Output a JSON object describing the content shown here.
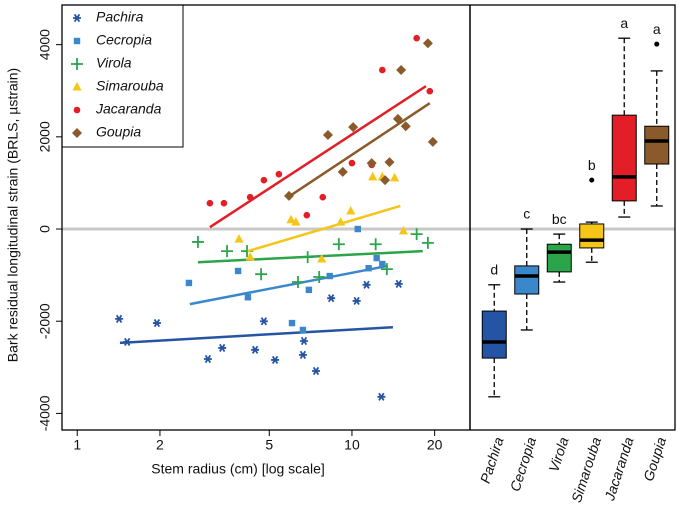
{
  "chart_data": [
    {
      "type": "scatter",
      "x_label": "Stem radius (cm) [log scale]",
      "y_label": "Bark residual longitudinal strain (BRLS, µstrain)",
      "log_x": true,
      "xlim": [
        0.88,
        26.9
      ],
      "ylim": [
        -4360,
        4860
      ],
      "xticks": [
        1,
        2,
        5,
        10,
        20
      ],
      "yticks": [
        -4000,
        -2000,
        0,
        2000,
        4000
      ],
      "ref_line": 0,
      "legend": "upper left",
      "series": [
        {
          "name": "Pachira",
          "color": "#2554a4",
          "marker": "asterisk",
          "x": [
            1.42,
            1.52,
            1.95,
            2.99,
            3.37,
            4.44,
            4.78,
            5.25,
            6.63,
            6.69,
            7.4,
            8.4,
            10.4,
            11.3,
            12.8,
            14.8
          ],
          "values": [
            -1950,
            -2450,
            -2040,
            -2820,
            -2580,
            -2620,
            -2000,
            -2840,
            -2730,
            -2430,
            -3080,
            -1500,
            -1560,
            -1210,
            -3640,
            -1190
          ],
          "fit": {
            "x": [
              1.43,
              14.1
            ],
            "values": [
              -2470,
              -2130
            ]
          }
        },
        {
          "name": "Cecropia",
          "color": "#3b87cb",
          "marker": "square",
          "x": [
            2.55,
            3.85,
            4.18,
            6.05,
            6.63,
            6.97,
            8.3,
            10.5,
            11.5,
            12.3,
            12.9
          ],
          "values": [
            -1170,
            -910,
            -1480,
            -2040,
            -2190,
            -1320,
            -1020,
            0,
            -850,
            -630,
            -760
          ],
          "fit": {
            "x": [
              2.57,
              13.5
            ],
            "values": [
              -1630,
              -800
            ]
          }
        },
        {
          "name": "Virola",
          "color": "#2ca54a",
          "marker": "plus",
          "x": [
            2.75,
            3.51,
            4.15,
            4.67,
            6.36,
            6.9,
            7.6,
            8.96,
            12.2,
            13.4,
            17.2,
            18.9
          ],
          "values": [
            -280,
            -480,
            -480,
            -980,
            -1150,
            -610,
            -1040,
            -330,
            -330,
            -870,
            -110,
            -300
          ],
          "fit": {
            "x": [
              2.75,
              18.1
            ],
            "values": [
              -720,
              -480
            ]
          }
        },
        {
          "name": "Simarouba",
          "color": "#f5c518",
          "marker": "triangle",
          "x": [
            3.88,
            4.26,
            6.0,
            6.25,
            7.76,
            9.1,
            9.9,
            11.9,
            12.9,
            14.3,
            15.4
          ],
          "values": [
            -220,
            -610,
            200,
            150,
            -650,
            150,
            390,
            1130,
            1130,
            1110,
            -40
          ],
          "fit": {
            "x": [
              4.18,
              15
            ],
            "values": [
              -480,
              500
            ]
          }
        },
        {
          "name": "Jacaranda",
          "color": "#e31e26",
          "marker": "circle",
          "x": [
            3.04,
            3.42,
            4.26,
            4.78,
            5.42,
            6.85,
            7.83,
            10.0,
            11.8,
            12.9,
            17.2,
            19.2
          ],
          "values": [
            560,
            560,
            690,
            1060,
            1190,
            300,
            690,
            1430,
            1390,
            3450,
            4140,
            2990
          ],
          "fit": {
            "x": [
              3.04,
              18.6
            ],
            "values": [
              40,
              3100
            ]
          }
        },
        {
          "name": "Goupia",
          "color": "#8b5a2b",
          "marker": "diamond",
          "x": [
            5.9,
            8.18,
            9.26,
            10.1,
            11.8,
            13.2,
            13.7,
            14.7,
            15.1,
            15.7,
            18.9,
            19.7
          ],
          "values": [
            720,
            2040,
            1240,
            2210,
            1430,
            1060,
            1450,
            2390,
            3450,
            2230,
            4030,
            1890
          ],
          "fit": {
            "x": [
              5.85,
              19.2
            ],
            "values": [
              690,
              2730
            ]
          }
        }
      ]
    },
    {
      "type": "box",
      "ylim": [
        -4360,
        4860
      ],
      "ref_line": 0,
      "categories": [
        "Pachira",
        "Cecropia",
        "Virola",
        "Simarouba",
        "Jacaranda",
        "Goupia"
      ],
      "colors": [
        "#2554a4",
        "#3b87cb",
        "#2ca54a",
        "#f5c518",
        "#e31e26",
        "#8b5a2b"
      ],
      "min": [
        -3640,
        -2190,
        -1150,
        -720,
        260,
        500
      ],
      "q1": [
        -2800,
        -1410,
        -930,
        -410,
        610,
        1410
      ],
      "median": [
        -2450,
        -1020,
        -500,
        -240,
        1130,
        1910
      ],
      "q3": [
        -1780,
        -800,
        -330,
        110,
        2470,
        2230
      ],
      "max": [
        -1210,
        0,
        -110,
        150,
        4140,
        3430
      ],
      "outliers": [
        [],
        [],
        [],
        [
          1060
        ],
        [],
        [
          4010
        ]
      ],
      "letters": [
        "d",
        "c",
        "bc",
        "b",
        "a",
        "a"
      ]
    }
  ]
}
